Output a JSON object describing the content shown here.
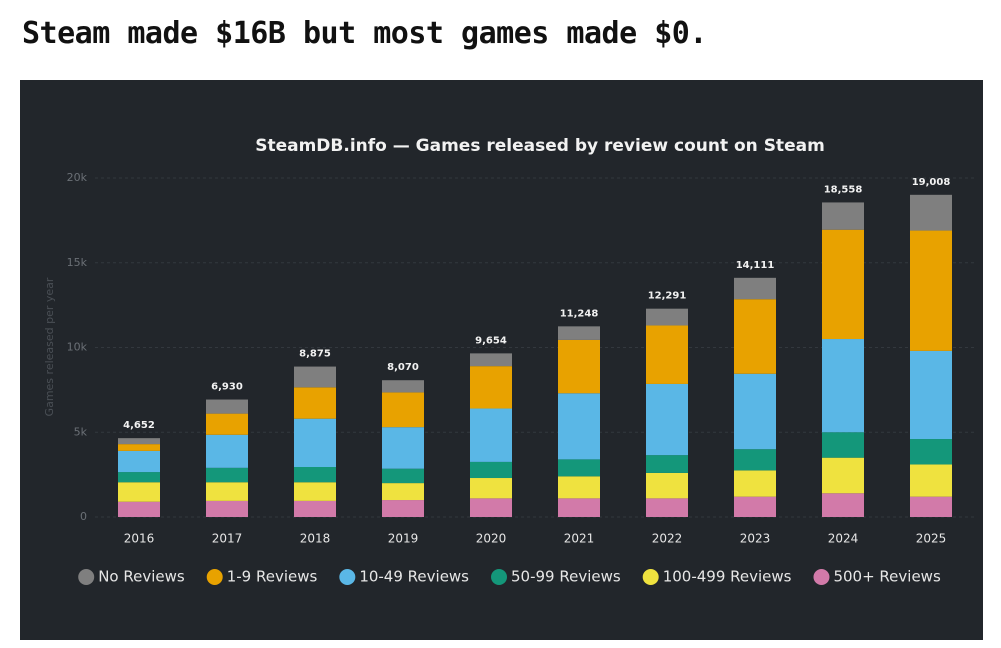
{
  "page_title": "Steam made $16B but most games made $0.",
  "chart_data": {
    "type": "stacked_bar",
    "title": "SteamDB.info — Games released by review count on Steam",
    "ylabel": "Games released per year",
    "categories": [
      "2016",
      "2017",
      "2018",
      "2019",
      "2020",
      "2021",
      "2022",
      "2023",
      "2024",
      "2025"
    ],
    "total_labels": [
      "4,652",
      "6,930",
      "8,875",
      "8,070",
      "9,654",
      "11,248",
      "12,291",
      "14,111",
      "18,558",
      "19,008"
    ],
    "series": [
      {
        "name": "No Reviews",
        "color": "#7f7f7f",
        "values": [
          352,
          830,
          1225,
          720,
          754,
          798,
          991,
          1261,
          1608,
          2108
        ]
      },
      {
        "name": "1-9 Reviews",
        "color": "#e8a200",
        "values": [
          400,
          1250,
          1850,
          2050,
          2500,
          3150,
          3450,
          4400,
          6450,
          7100
        ]
      },
      {
        "name": "10-49 Reviews",
        "color": "#5ab7e6",
        "values": [
          1250,
          1950,
          2850,
          2450,
          3150,
          3900,
          4200,
          4450,
          5500,
          5200
        ]
      },
      {
        "name": "50-99 Reviews",
        "color": "#14977a",
        "values": [
          600,
          850,
          900,
          850,
          950,
          1000,
          1050,
          1250,
          1500,
          1500
        ]
      },
      {
        "name": "100-499 Reviews",
        "color": "#efe23f",
        "values": [
          1150,
          1100,
          1100,
          1000,
          1200,
          1300,
          1500,
          1550,
          2100,
          1900
        ]
      },
      {
        "name": "500+ Reviews",
        "color": "#d27aa9",
        "values": [
          900,
          950,
          950,
          1000,
          1100,
          1100,
          1100,
          1200,
          1400,
          1200
        ]
      }
    ],
    "ylim": [
      0,
      20000
    ],
    "yticks": [
      0,
      {
        "value": 5000,
        "label": "5k"
      },
      {
        "value": 10000,
        "label": "10k"
      },
      {
        "value": 15000,
        "label": "15k"
      },
      {
        "value": 20000,
        "label": "20k"
      }
    ],
    "grid": true,
    "legend": "bottom"
  }
}
